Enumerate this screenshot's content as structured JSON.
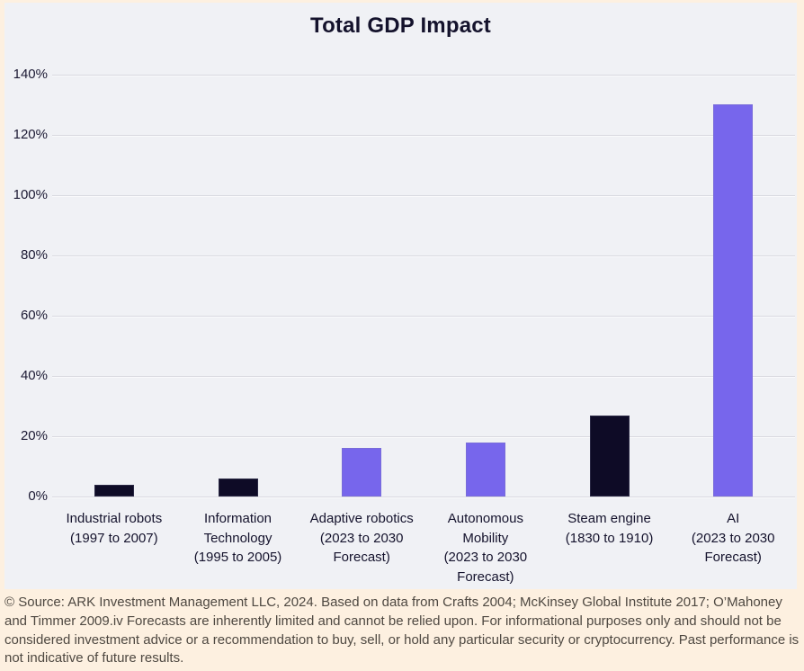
{
  "colors": {
    "page_border": "#fdf0e0",
    "chart_background": "#f0f1f5",
    "gridline": "#d9d9e0",
    "bar_dark": "#0e0b26",
    "bar_purple": "#7766ec",
    "title_text": "#14122c",
    "axis_text": "#1b1933",
    "footer_background": "#fdf0e0",
    "footer_text": "#4e4841"
  },
  "chart_data": {
    "type": "bar",
    "title": "Total GDP Impact",
    "xlabel": "",
    "ylabel": "",
    "ylim": [
      0,
      140
    ],
    "yticks": [
      0,
      20,
      40,
      60,
      80,
      100,
      120,
      140
    ],
    "ytick_suffix": "%",
    "grid": true,
    "legend": "none",
    "categories": [
      [
        "Industrial robots",
        "(1997 to 2007)"
      ],
      [
        "Information",
        "Technology",
        "(1995 to 2005)"
      ],
      [
        "Adaptive robotics",
        "(2023 to 2030",
        "Forecast)"
      ],
      [
        "Autonomous",
        "Mobility",
        "(2023 to 2030",
        "Forecast)"
      ],
      [
        "Steam engine",
        "(1830 to 1910)"
      ],
      [
        "AI",
        "(2023 to 2030",
        "Forecast)"
      ]
    ],
    "values": [
      4,
      6,
      16,
      18,
      27,
      130
    ],
    "bar_colors": [
      "#0e0b26",
      "#0e0b26",
      "#7766ec",
      "#7766ec",
      "#0e0b26",
      "#7766ec"
    ]
  },
  "footer": {
    "text": "© Source: ARK Investment Management LLC, 2024. Based on data from Crafts 2004; McKinsey Global Institute 2017; O’Mahoney and Timmer 2009.iv Forecasts are inherently limited and cannot be relied upon. For informational purposes only and should not be considered investment advice or a recommendation to buy, sell, or hold any particular security or cryptocurrency. Past performance is not indicative of future results."
  }
}
